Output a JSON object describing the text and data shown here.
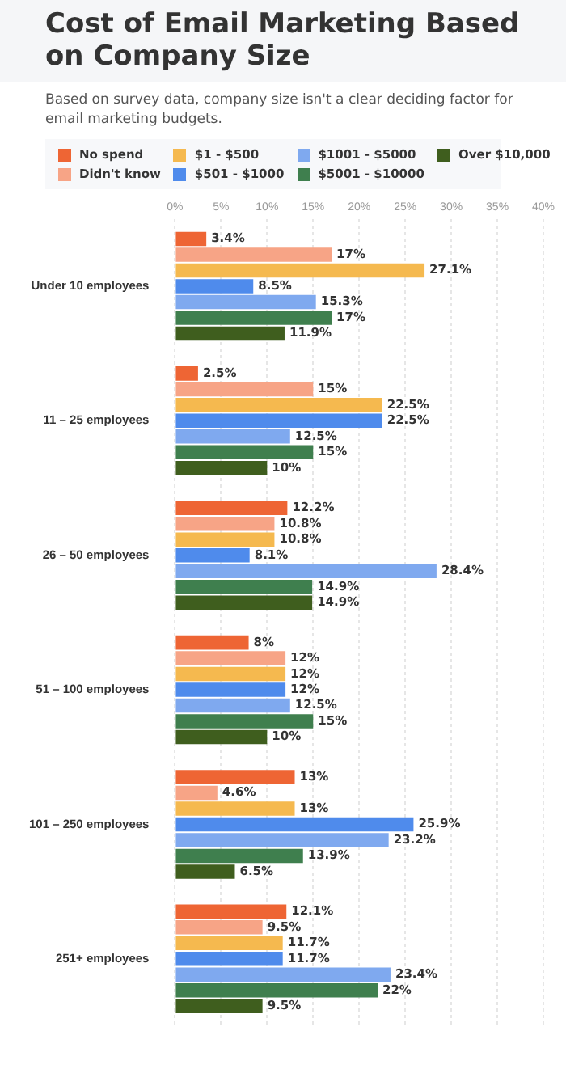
{
  "chart_data": {
    "type": "bar",
    "orientation": "horizontal",
    "title": "Cost of Email Marketing Based on Company Size",
    "subtitle": "Based on survey data, company size isn't a clear deciding factor for email marketing budgets.",
    "categories": [
      "Under 10 employees",
      "11 – 25 employees",
      "26 – 50 employees",
      "51 – 100 employees",
      "101 – 250 employees",
      "251+ employees"
    ],
    "series": [
      {
        "name": "No spend",
        "color": "#ee6534",
        "values": [
          3.4,
          2.5,
          12.2,
          8,
          13,
          12.1
        ],
        "value_labels": [
          "3.4%",
          "2.5%",
          "12.2%",
          "8%",
          "13%",
          "12.1%"
        ]
      },
      {
        "name": "Didn't know",
        "color": "#f7a486",
        "values": [
          17,
          15,
          10.8,
          12,
          4.6,
          9.5
        ],
        "value_labels": [
          "17%",
          "15%",
          "10.8%",
          "12%",
          "4.6%",
          "9.5%"
        ]
      },
      {
        "name": "$1 - $500",
        "color": "#f5b94f",
        "values": [
          27.1,
          22.5,
          10.8,
          12,
          13,
          11.7
        ],
        "value_labels": [
          "27.1%",
          "22.5%",
          "10.8%",
          "12%",
          "13%",
          "11.7%"
        ]
      },
      {
        "name": "$501 - $1000",
        "color": "#4f8bec",
        "values": [
          8.5,
          22.5,
          8.1,
          12,
          25.9,
          11.7
        ],
        "value_labels": [
          "8.5%",
          "22.5%",
          "8.1%",
          "12%",
          "25.9%",
          "11.7%"
        ]
      },
      {
        "name": "$1001 - $5000",
        "color": "#7fa9ef",
        "values": [
          15.3,
          12.5,
          28.4,
          12.5,
          23.2,
          23.4
        ],
        "value_labels": [
          "15.3%",
          "12.5%",
          "28.4%",
          "12.5%",
          "23.2%",
          "23.4%"
        ]
      },
      {
        "name": "$5001 - $10000",
        "color": "#3f7f4e",
        "values": [
          17,
          15,
          14.9,
          15,
          13.9,
          22
        ],
        "value_labels": [
          "17%",
          "15%",
          "14.9%",
          "15%",
          "13.9%",
          "22%"
        ]
      },
      {
        "name": "Over $10,000",
        "color": "#3f5e1e",
        "values": [
          11.9,
          10,
          14.9,
          10,
          6.5,
          9.5
        ],
        "value_labels": [
          "11.9%",
          "10%",
          "14.9%",
          "10%",
          "6.5%",
          "9.5%"
        ]
      }
    ],
    "xlim": [
      0,
      40
    ],
    "xticks": [
      {
        "value": 0,
        "label": "0%"
      },
      {
        "value": 5,
        "label": "5%"
      },
      {
        "value": 10,
        "label": "10%"
      },
      {
        "value": 15,
        "label": "15%"
      },
      {
        "value": 20,
        "label": "20%"
      },
      {
        "value": 25,
        "label": "25%"
      },
      {
        "value": 30,
        "label": "30%"
      },
      {
        "value": 35,
        "label": "35%"
      },
      {
        "value": 40,
        "label": "40%"
      }
    ],
    "grid": "x",
    "legend": "top"
  }
}
